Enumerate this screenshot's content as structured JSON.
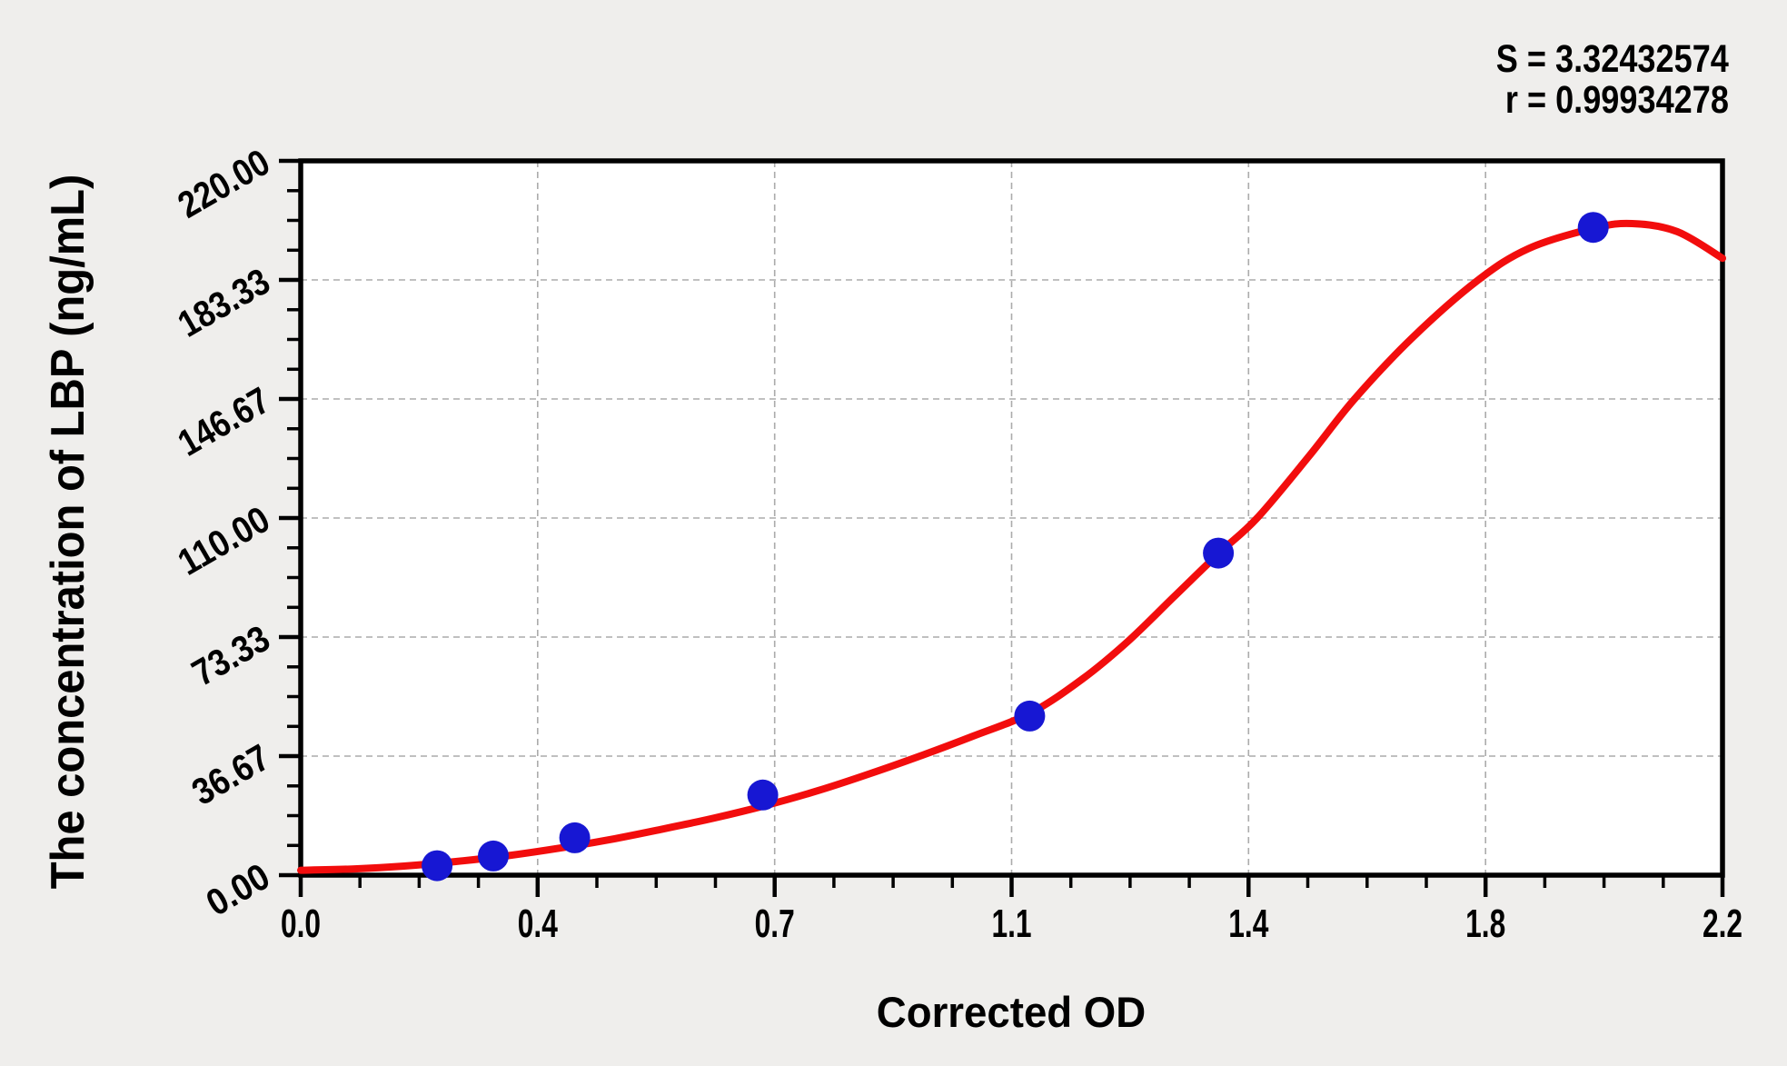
{
  "stats": {
    "s_label": "S = 3.32432574",
    "r_label": "r = 0.99934278"
  },
  "chart_data": {
    "type": "scatter",
    "title": "",
    "xlabel": "Corrected OD",
    "ylabel": "The concentration of LBP (ng/mL)",
    "xlim": [
      0,
      2.2
    ],
    "ylim": [
      0,
      220
    ],
    "x_tick_labels": [
      "0.0",
      "0.4",
      "0.7",
      "1.1",
      "1.4",
      "1.8",
      "2.2"
    ],
    "y_tick_labels": [
      "0.00",
      "36.67",
      "73.33",
      "110.00",
      "146.67",
      "183.33",
      "220.00"
    ],
    "minor_ticks_per_major": 4,
    "grid": {
      "show": true,
      "style": "dashed",
      "color": "#ababab",
      "at": "major-ticks"
    },
    "fit_stats": {
      "S": 3.32432574,
      "r": 0.99934278
    },
    "legend": null,
    "points_series_name": "standards",
    "points": [
      [
        0.211,
        2.9
      ],
      [
        0.298,
        5.9
      ],
      [
        0.424,
        11.5
      ],
      [
        0.715,
        24.7
      ],
      [
        1.128,
        49.0
      ],
      [
        1.42,
        99.2
      ],
      [
        2.0,
        199.5
      ]
    ],
    "curve_series_name": "fitted-curve",
    "curve": [
      [
        0.0,
        1.5
      ],
      [
        0.08,
        1.9
      ],
      [
        0.16,
        2.8
      ],
      [
        0.24,
        4.2
      ],
      [
        0.32,
        6.0
      ],
      [
        0.4,
        8.3
      ],
      [
        0.48,
        11.0
      ],
      [
        0.56,
        14.2
      ],
      [
        0.64,
        17.6
      ],
      [
        0.72,
        21.5
      ],
      [
        0.8,
        26.0
      ],
      [
        0.88,
        31.2
      ],
      [
        0.96,
        36.8
      ],
      [
        1.04,
        42.8
      ],
      [
        1.13,
        50.0
      ],
      [
        1.21,
        60.5
      ],
      [
        1.28,
        72.0
      ],
      [
        1.35,
        85.5
      ],
      [
        1.42,
        99.0
      ],
      [
        1.48,
        110.0
      ],
      [
        1.56,
        129.0
      ],
      [
        1.63,
        146.5
      ],
      [
        1.72,
        165.5
      ],
      [
        1.82,
        183.0
      ],
      [
        1.9,
        193.0
      ],
      [
        2.0,
        199.2
      ],
      [
        2.06,
        200.7
      ],
      [
        2.13,
        198.2
      ],
      [
        2.2,
        190.0
      ]
    ],
    "colors": {
      "curve": "#f20d0d",
      "points": "#1717d3",
      "axis": "#000000",
      "grid": "#ababab",
      "plot_bg": "#ffffff",
      "page_bg": "#efeeec",
      "text": "#000000"
    }
  }
}
